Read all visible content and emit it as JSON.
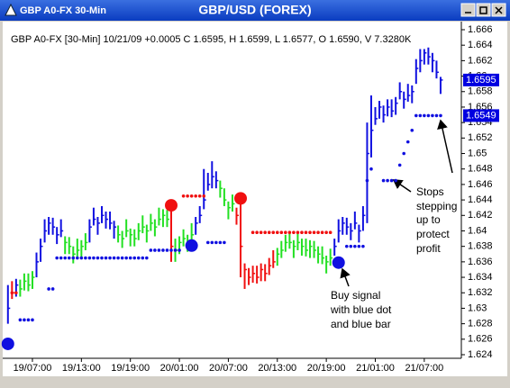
{
  "window": {
    "title": "GBP A0-FX 30-Min"
  },
  "chart_data": {
    "type": "ohlc",
    "title": "GBP/USD (FOREX)",
    "info": "GBP A0-FX [30-Min] 10/21/09 +0.0005 C 1.6595, H 1.6599, L 1.6577, O 1.6590, V 7.3280K",
    "palette": {
      "blue": "#1010e0",
      "green": "#22e022",
      "red": "#f01010"
    },
    "categories": [
      null,
      null,
      null,
      null,
      null,
      null,
      "19/07:00",
      null,
      null,
      null,
      null,
      null,
      null,
      null,
      null,
      null,
      null,
      null,
      "19/13:00",
      null,
      null,
      null,
      null,
      null,
      null,
      null,
      null,
      null,
      null,
      null,
      "19/19:00",
      null,
      null,
      null,
      null,
      null,
      null,
      null,
      null,
      null,
      null,
      null,
      "20/01:00",
      null,
      null,
      null,
      null,
      null,
      null,
      null,
      null,
      null,
      null,
      null,
      "20/07:00",
      null,
      null,
      null,
      null,
      null,
      null,
      null,
      null,
      null,
      null,
      null,
      "20/13:00",
      null,
      null,
      null,
      null,
      null,
      null,
      null,
      null,
      null,
      null,
      null,
      "20/19:00",
      null,
      null,
      null,
      null,
      null,
      null,
      null,
      null,
      null,
      null,
      null,
      "21/01:00",
      null,
      null,
      null,
      null,
      null,
      null,
      null,
      null,
      null,
      null,
      null,
      "21/07:00",
      null,
      null,
      null,
      null
    ],
    "close": [
      1.63,
      1.632,
      1.633,
      1.6325,
      1.6335,
      1.633,
      1.634,
      1.636,
      1.638,
      1.64,
      1.641,
      1.6405,
      1.6395,
      1.64,
      1.6385,
      1.638,
      1.637,
      1.6375,
      1.638,
      1.6385,
      1.6405,
      1.6415,
      1.641,
      1.642,
      1.6415,
      1.641,
      1.6405,
      1.6395,
      1.639,
      1.64,
      1.6395,
      1.639,
      1.64,
      1.6405,
      1.64,
      1.641,
      1.6405,
      1.6415,
      1.642,
      1.6415,
      1.638,
      1.6375,
      1.6385,
      1.639,
      1.6385,
      1.6395,
      1.641,
      1.642,
      1.644,
      1.646,
      1.647,
      1.6465,
      1.6455,
      1.644,
      1.643,
      1.6435,
      1.642,
      1.638,
      1.635,
      1.634,
      1.6345,
      1.634,
      1.635,
      1.6345,
      1.6355,
      1.636,
      1.637,
      1.6375,
      1.6385,
      1.6385,
      1.638,
      1.6385,
      1.638,
      1.6375,
      1.638,
      1.6375,
      1.637,
      1.6365,
      1.636,
      1.6365,
      1.638,
      1.64,
      1.641,
      1.6405,
      1.64,
      1.641,
      1.64,
      1.642,
      1.65,
      1.653,
      1.6545,
      1.656,
      1.655,
      1.656,
      1.6555,
      1.6565,
      1.658,
      1.657,
      1.6575,
      1.658,
      1.661,
      1.662,
      1.663,
      1.6625,
      1.662,
      1.6605,
      1.6595
    ],
    "high": [
      1.633,
      1.6335,
      1.6338,
      1.6337,
      1.6345,
      1.6345,
      1.6348,
      1.6372,
      1.639,
      1.6415,
      1.6418,
      1.6417,
      1.6405,
      1.6415,
      1.6393,
      1.6392,
      1.638,
      1.639,
      1.6388,
      1.6397,
      1.6415,
      1.643,
      1.6418,
      1.6432,
      1.6425,
      1.6425,
      1.6413,
      1.6407,
      1.64,
      1.6415,
      1.6403,
      1.6402,
      1.641,
      1.642,
      1.6408,
      1.6422,
      1.6415,
      1.643,
      1.6428,
      1.6427,
      1.644,
      1.639,
      1.6393,
      1.6402,
      1.6395,
      1.641,
      1.6418,
      1.6432,
      1.648,
      1.6475,
      1.649,
      1.6477,
      1.6465,
      1.6455,
      1.6438,
      1.6447,
      1.643,
      1.644,
      1.6358,
      1.6352,
      1.6355,
      1.6355,
      1.6358,
      1.6357,
      1.6365,
      1.6375,
      1.6378,
      1.6387,
      1.6395,
      1.64,
      1.6388,
      1.6397,
      1.639,
      1.639,
      1.6388,
      1.6387,
      1.638,
      1.638,
      1.6368,
      1.6377,
      1.639,
      1.6415,
      1.6418,
      1.6417,
      1.641,
      1.6425,
      1.6408,
      1.6432,
      1.654,
      1.6575,
      1.656,
      1.6568,
      1.6562,
      1.657,
      1.657,
      1.6573,
      1.6592,
      1.658,
      1.659,
      1.6588,
      1.6622,
      1.6635,
      1.6635,
      1.6637,
      1.663,
      1.662,
      1.6599
    ],
    "low": [
      1.628,
      1.6312,
      1.6315,
      1.6315,
      1.6323,
      1.6322,
      1.6325,
      1.634,
      1.636,
      1.6385,
      1.6395,
      1.6395,
      1.6383,
      1.6392,
      1.637,
      1.637,
      1.6358,
      1.6367,
      1.6365,
      1.6375,
      1.6385,
      1.6407,
      1.6395,
      1.641,
      1.6403,
      1.6402,
      1.639,
      1.6385,
      1.6378,
      1.6392,
      1.638,
      1.638,
      1.6388,
      1.6397,
      1.6385,
      1.64,
      1.6393,
      1.6407,
      1.6405,
      1.6405,
      1.636,
      1.636,
      1.637,
      1.638,
      1.6373,
      1.6387,
      1.6395,
      1.641,
      1.6428,
      1.6452,
      1.6455,
      1.6455,
      1.6443,
      1.6432,
      1.6415,
      1.6425,
      1.6408,
      1.634,
      1.6325,
      1.633,
      1.6333,
      1.6332,
      1.6335,
      1.6335,
      1.6343,
      1.6352,
      1.6355,
      1.6365,
      1.6373,
      1.6377,
      1.6365,
      1.6375,
      1.6368,
      1.6367,
      1.6365,
      1.6365,
      1.6358,
      1.6357,
      1.6345,
      1.6355,
      1.6368,
      1.6385,
      1.6395,
      1.6395,
      1.6388,
      1.6402,
      1.6385,
      1.64,
      1.641,
      1.6495,
      1.6537,
      1.6545,
      1.654,
      1.6548,
      1.6547,
      1.655,
      1.657,
      1.6558,
      1.6567,
      1.6565,
      1.659,
      1.6605,
      1.6615,
      1.6615,
      1.6605,
      1.6597,
      1.6577
    ],
    "bar_colors": [
      "blue",
      "red",
      "blue",
      "green",
      "green",
      "green",
      "green",
      "blue",
      "blue",
      "blue",
      "blue",
      "blue",
      "blue",
      "blue",
      "green",
      "green",
      "green",
      "green",
      "green",
      "green",
      "blue",
      "blue",
      "blue",
      "blue",
      "blue",
      "blue",
      "blue",
      "green",
      "green",
      "green",
      "green",
      "green",
      "green",
      "green",
      "green",
      "green",
      "green",
      "green",
      "green",
      "green",
      "red",
      "green",
      "green",
      "green",
      "green",
      "green",
      "blue",
      "blue",
      "blue",
      "blue",
      "blue",
      "blue",
      "green",
      "green",
      "green",
      "green",
      "red",
      "red",
      "red",
      "red",
      "red",
      "red",
      "red",
      "red",
      "red",
      "red",
      "green",
      "green",
      "green",
      "green",
      "green",
      "green",
      "green",
      "green",
      "green",
      "green",
      "green",
      "green",
      "green",
      "green",
      "blue",
      "blue",
      "blue",
      "blue",
      "blue",
      "blue",
      "blue",
      "blue",
      "blue",
      "blue",
      "blue",
      "blue",
      "blue",
      "blue",
      "blue",
      "blue",
      "blue",
      "blue",
      "blue",
      "blue",
      "blue",
      "blue",
      "blue",
      "blue",
      "blue",
      "blue",
      "blue"
    ],
    "stops": [
      null,
      1.632,
      1.632,
      1.6285,
      1.6285,
      1.6285,
      1.6285,
      null,
      null,
      null,
      1.6325,
      1.6325,
      1.6365,
      1.6365,
      1.6365,
      1.6365,
      1.6365,
      1.6365,
      1.6365,
      1.6365,
      1.6365,
      1.6365,
      1.6365,
      1.6365,
      1.6365,
      1.6365,
      1.6365,
      1.6365,
      1.6365,
      1.6365,
      1.6365,
      1.6365,
      1.6365,
      1.6365,
      1.6365,
      1.6375,
      1.6375,
      1.6375,
      1.6375,
      1.6375,
      1.6375,
      1.6375,
      1.6375,
      1.6445,
      1.6445,
      1.6445,
      1.6445,
      1.6445,
      1.6445,
      1.6385,
      1.6385,
      1.6385,
      1.6385,
      1.6385,
      null,
      null,
      null,
      null,
      null,
      null,
      1.6398,
      1.6398,
      1.6398,
      1.6398,
      1.6398,
      1.6398,
      1.6398,
      1.6398,
      1.6398,
      1.6398,
      1.6398,
      1.6398,
      1.6398,
      1.6398,
      1.6398,
      1.6398,
      1.6398,
      1.6398,
      1.6398,
      1.6398,
      null,
      null,
      null,
      1.638,
      1.638,
      1.638,
      1.638,
      1.638,
      1.6465,
      1.648,
      null,
      null,
      1.6465,
      1.6465,
      1.6465,
      1.6465,
      1.6485,
      1.65,
      1.6515,
      1.653,
      1.6549,
      1.6549,
      1.6549,
      1.6549,
      1.6549,
      1.6549,
      1.6549
    ],
    "stop_colors": [
      null,
      "red",
      "red",
      "blue",
      "blue",
      "blue",
      "blue",
      null,
      null,
      null,
      "blue",
      "blue",
      "blue",
      "blue",
      "blue",
      "blue",
      "blue",
      "blue",
      "blue",
      "blue",
      "blue",
      "blue",
      "blue",
      "blue",
      "blue",
      "blue",
      "blue",
      "blue",
      "blue",
      "blue",
      "blue",
      "blue",
      "blue",
      "blue",
      "blue",
      "blue",
      "blue",
      "blue",
      "blue",
      "blue",
      "blue",
      "blue",
      "blue",
      "red",
      "red",
      "red",
      "red",
      "red",
      "red",
      "blue",
      "blue",
      "blue",
      "blue",
      "blue",
      null,
      null,
      null,
      null,
      null,
      null,
      "red",
      "red",
      "red",
      "red",
      "red",
      "red",
      "red",
      "red",
      "red",
      "red",
      "red",
      "red",
      "red",
      "red",
      "red",
      "red",
      "red",
      "red",
      "red",
      "red",
      null,
      null,
      null,
      "blue",
      "blue",
      "blue",
      "blue",
      "blue",
      "blue",
      "blue",
      null,
      null,
      "blue",
      "blue",
      "blue",
      "blue",
      "blue",
      "blue",
      "blue",
      "blue",
      "blue",
      "blue",
      "blue",
      "blue",
      "blue",
      "blue",
      "blue"
    ],
    "signals": [
      1.6254,
      null,
      null,
      null,
      null,
      null,
      null,
      null,
      null,
      null,
      null,
      null,
      null,
      null,
      null,
      null,
      null,
      null,
      null,
      null,
      null,
      null,
      null,
      null,
      null,
      null,
      null,
      null,
      null,
      null,
      null,
      null,
      null,
      null,
      null,
      null,
      null,
      null,
      null,
      null,
      1.6433,
      null,
      null,
      null,
      null,
      1.6381,
      null,
      null,
      null,
      null,
      null,
      null,
      null,
      null,
      null,
      null,
      null,
      1.6442,
      null,
      null,
      null,
      null,
      null,
      null,
      null,
      null,
      null,
      null,
      null,
      null,
      null,
      null,
      null,
      null,
      null,
      null,
      null,
      null,
      null,
      null,
      null,
      1.6359,
      null,
      null,
      null,
      null,
      null,
      null,
      null,
      null,
      null,
      null,
      null,
      null,
      null,
      null,
      null,
      null,
      null,
      null,
      null,
      null,
      null,
      null,
      null,
      null,
      null
    ],
    "signal_colors": [
      "blue",
      null,
      null,
      null,
      null,
      null,
      null,
      null,
      null,
      null,
      null,
      null,
      null,
      null,
      null,
      null,
      null,
      null,
      null,
      null,
      null,
      null,
      null,
      null,
      null,
      null,
      null,
      null,
      null,
      null,
      null,
      null,
      null,
      null,
      null,
      null,
      null,
      null,
      null,
      null,
      "red",
      null,
      null,
      null,
      null,
      "blue",
      null,
      null,
      null,
      null,
      null,
      null,
      null,
      null,
      null,
      null,
      null,
      "red",
      null,
      null,
      null,
      null,
      null,
      null,
      null,
      null,
      null,
      null,
      null,
      null,
      null,
      null,
      null,
      null,
      null,
      null,
      null,
      null,
      null,
      null,
      null,
      "blue",
      null,
      null,
      null,
      null,
      null,
      null,
      null,
      null,
      null,
      null,
      null,
      null,
      null,
      null,
      null,
      null,
      null,
      null,
      null,
      null,
      null,
      null,
      null,
      null,
      null
    ],
    "price_tags": [
      1.6595,
      1.6549
    ],
    "ylim": [
      1.624,
      1.666
    ],
    "yticks": [
      1.624,
      1.626,
      1.628,
      1.63,
      1.632,
      1.634,
      1.636,
      1.638,
      1.64,
      1.642,
      1.644,
      1.646,
      1.648,
      1.65,
      1.652,
      1.654,
      1.656,
      1.658,
      1.66,
      1.662,
      1.664,
      1.666
    ],
    "annotations": {
      "stops": [
        "Stops",
        "stepping",
        "up to",
        "protect",
        "profit"
      ],
      "buy": [
        "Buy signal",
        "with blue dot",
        "and blue bar"
      ]
    }
  }
}
